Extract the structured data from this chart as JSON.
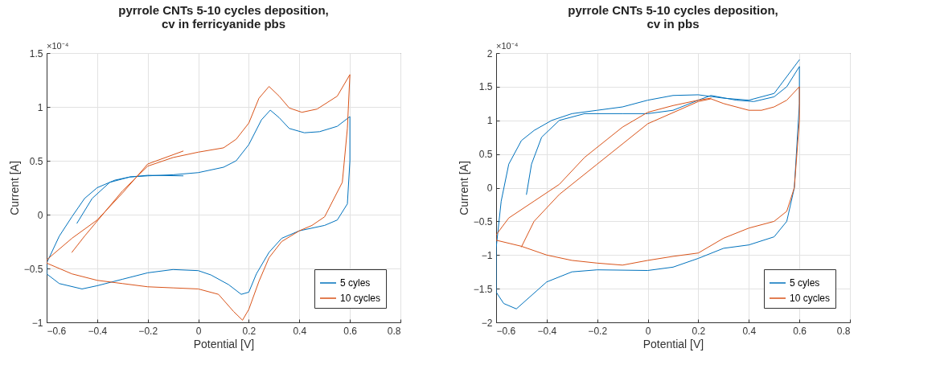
{
  "chart_data": [
    {
      "type": "line",
      "title": "pyrrole CNTs 5-10 cycles deposition,\ncv in ferricyanide pbs",
      "xlabel": "Potential [V]",
      "ylabel": "Current [A]",
      "annotations": [
        "×10⁻⁴"
      ],
      "xlim": [
        -0.6,
        0.8
      ],
      "xticks": [
        -0.6,
        -0.4,
        -0.2,
        0,
        0.2,
        0.4,
        0.6,
        0.8
      ],
      "ylim": [
        -1,
        1.5
      ],
      "yticks": [
        -1,
        -0.5,
        0,
        0.5,
        1,
        1.5
      ],
      "grid": true,
      "legend": "bottom right",
      "line_style": "solid",
      "series": [
        {
          "name": "5 cyles",
          "color": "#0072bd",
          "x": [
            -0.48,
            -0.42,
            -0.35,
            -0.27,
            -0.2,
            -0.1,
            0,
            0.1,
            0.15,
            0.2,
            0.25,
            0.285,
            0.32,
            0.36,
            0.42,
            0.48,
            0.55,
            0.6,
            0.6,
            0.59,
            0.55,
            0.5,
            0.4,
            0.33,
            0.28,
            0.23,
            0.2,
            0.17,
            0.12,
            0.05,
            0,
            -0.1,
            -0.2,
            -0.3,
            -0.4,
            -0.46,
            -0.55,
            -0.6,
            -0.6,
            -0.55,
            -0.5,
            -0.45,
            -0.4,
            -0.33,
            -0.27,
            -0.2,
            -0.06
          ],
          "values": [
            -0.08,
            0.15,
            0.3,
            0.35,
            0.36,
            0.37,
            0.39,
            0.44,
            0.5,
            0.65,
            0.88,
            0.97,
            0.9,
            0.8,
            0.76,
            0.77,
            0.82,
            0.91,
            0.5,
            0.1,
            -0.05,
            -0.1,
            -0.15,
            -0.22,
            -0.35,
            -0.55,
            -0.72,
            -0.74,
            -0.65,
            -0.56,
            -0.52,
            -0.51,
            -0.54,
            -0.6,
            -0.66,
            -0.69,
            -0.64,
            -0.55,
            -0.45,
            -0.2,
            -0.02,
            0.15,
            0.25,
            0.32,
            0.35,
            0.365,
            0.36
          ]
        },
        {
          "name": "10 cycles",
          "color": "#d95319",
          "x": [
            -0.5,
            -0.45,
            -0.4,
            -0.3,
            -0.2,
            -0.1,
            0,
            0.1,
            0.15,
            0.2,
            0.24,
            0.28,
            0.32,
            0.36,
            0.41,
            0.47,
            0.55,
            0.6,
            0.59,
            0.57,
            0.5,
            0.45,
            0.4,
            0.33,
            0.28,
            0.24,
            0.2,
            0.175,
            0.14,
            0.08,
            0,
            -0.1,
            -0.2,
            -0.3,
            -0.4,
            -0.5,
            -0.6,
            -0.6,
            -0.5,
            -0.4,
            -0.3,
            -0.2,
            -0.06
          ],
          "values": [
            -0.35,
            -0.2,
            -0.06,
            0.22,
            0.45,
            0.53,
            0.58,
            0.62,
            0.7,
            0.85,
            1.08,
            1.19,
            1.1,
            0.99,
            0.95,
            0.98,
            1.1,
            1.3,
            0.8,
            0.3,
            -0.02,
            -0.1,
            -0.15,
            -0.25,
            -0.4,
            -0.62,
            -0.88,
            -0.98,
            -0.9,
            -0.74,
            -0.69,
            -0.68,
            -0.67,
            -0.64,
            -0.61,
            -0.55,
            -0.45,
            -0.42,
            -0.22,
            -0.05,
            0.2,
            0.47,
            0.59
          ]
        }
      ]
    },
    {
      "type": "line",
      "title": "pyrrole CNTs 5-10 cycles deposition,\ncv in pbs",
      "xlabel": "Potential [V]",
      "ylabel": "Current [A]",
      "annotations": [
        "×10⁻⁴"
      ],
      "xlim": [
        -0.6,
        0.8
      ],
      "xticks": [
        -0.6,
        -0.4,
        -0.2,
        0,
        0.2,
        0.4,
        0.6,
        0.8
      ],
      "ylim": [
        -2,
        2
      ],
      "yticks": [
        -2,
        -1.5,
        -1,
        -0.5,
        0,
        0.5,
        1,
        1.5,
        2
      ],
      "grid": true,
      "legend": "bottom right",
      "line_style": "solid",
      "series": [
        {
          "name": "5 cyles",
          "color": "#0072bd",
          "x": [
            -0.48,
            -0.46,
            -0.42,
            -0.35,
            -0.25,
            -0.1,
            0,
            0.1,
            0.2,
            0.25,
            0.35,
            0.42,
            0.5,
            0.55,
            0.6,
            0.6,
            0.58,
            0.55,
            0.5,
            0.4,
            0.3,
            0.2,
            0.1,
            0,
            -0.2,
            -0.3,
            -0.4,
            -0.52,
            -0.57,
            -0.6,
            -0.6,
            -0.58,
            -0.55,
            -0.5,
            -0.45,
            -0.38,
            -0.3,
            -0.2,
            -0.1,
            0,
            0.1,
            0.2,
            0.3,
            0.4,
            0.5,
            0.6
          ],
          "values": [
            -0.1,
            0.35,
            0.75,
            1.0,
            1.1,
            1.1,
            1.1,
            1.15,
            1.3,
            1.37,
            1.3,
            1.28,
            1.35,
            1.5,
            1.8,
            1.25,
            0.0,
            -0.5,
            -0.73,
            -0.85,
            -0.9,
            -1.05,
            -1.18,
            -1.23,
            -1.22,
            -1.25,
            -1.4,
            -1.8,
            -1.72,
            -1.55,
            -0.9,
            -0.2,
            0.35,
            0.7,
            0.85,
            1.0,
            1.1,
            1.15,
            1.2,
            1.3,
            1.37,
            1.38,
            1.33,
            1.3,
            1.4,
            1.9
          ]
        },
        {
          "name": "10 cycles",
          "color": "#d95319",
          "x": [
            -0.5,
            -0.45,
            -0.35,
            -0.2,
            0,
            0.2,
            0.25,
            0.3,
            0.4,
            0.45,
            0.5,
            0.55,
            0.6,
            0.6,
            0.58,
            0.55,
            0.5,
            0.4,
            0.3,
            0.2,
            0.1,
            0,
            -0.1,
            -0.2,
            -0.3,
            -0.4,
            -0.5,
            -0.6,
            -0.6,
            -0.55,
            -0.45,
            -0.35,
            -0.25,
            -0.1,
            0,
            0.1,
            0.2,
            0.25
          ],
          "values": [
            -0.88,
            -0.5,
            -0.1,
            0.35,
            0.95,
            1.28,
            1.32,
            1.25,
            1.15,
            1.15,
            1.2,
            1.3,
            1.5,
            1.0,
            0.0,
            -0.35,
            -0.5,
            -0.6,
            -0.75,
            -0.97,
            -1.02,
            -1.08,
            -1.15,
            -1.12,
            -1.08,
            -1.0,
            -0.87,
            -0.78,
            -0.7,
            -0.45,
            -0.2,
            0.05,
            0.45,
            0.9,
            1.12,
            1.22,
            1.3,
            1.33
          ]
        }
      ]
    }
  ]
}
